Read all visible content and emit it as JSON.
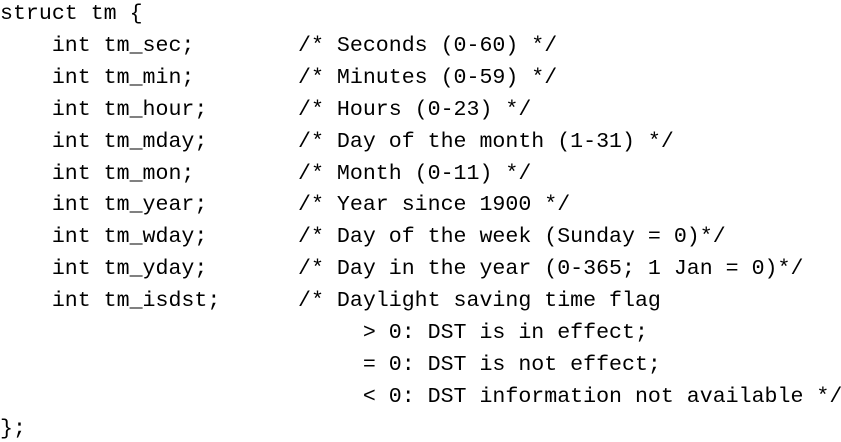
{
  "code": {
    "header": "struct tm {",
    "fields": [
      {
        "decl": "int tm_sec;",
        "comment": "/* Seconds (0-60) */"
      },
      {
        "decl": "int tm_min;",
        "comment": "/* Minutes (0-59) */"
      },
      {
        "decl": "int tm_hour;",
        "comment": "/* Hours (0-23) */"
      },
      {
        "decl": "int tm_mday;",
        "comment": "/* Day of the month (1-31) */"
      },
      {
        "decl": "int tm_mon;",
        "comment": "/* Month (0-11) */"
      },
      {
        "decl": "int tm_year;",
        "comment": "/* Year since 1900 */"
      },
      {
        "decl": "int tm_wday;",
        "comment": "/* Day of the week (Sunday = 0)*/"
      },
      {
        "decl": "int tm_yday;",
        "comment": "/* Day in the year (0-365; 1 Jan = 0)*/"
      },
      {
        "decl": "int tm_isdst;",
        "comment": "/* Daylight saving time flag"
      }
    ],
    "continuation": [
      "> 0: DST is in effect;",
      "= 0: DST is not effect;",
      "< 0: DST information not available */"
    ],
    "footer": "};"
  }
}
